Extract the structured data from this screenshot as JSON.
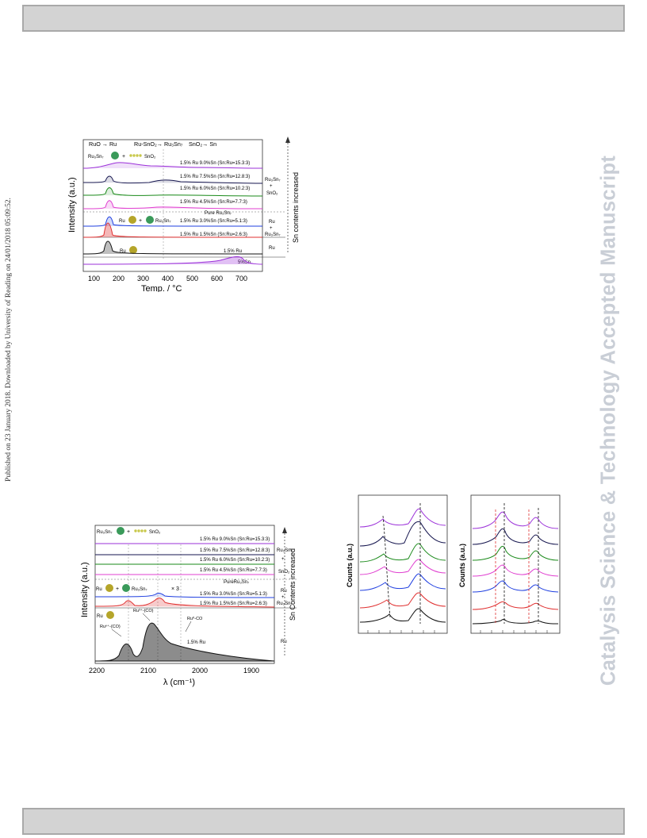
{
  "watermark": "Catalysis Science & Technology Accepted Manuscript",
  "download_stamp": "Published on 23 January 2018. Downloaded by University of Reading on 24/01/2018 05:09:52.",
  "colors": {
    "purple": "#9b30d9",
    "dark_blue": "#16164f",
    "green": "#1a8a1a",
    "magenta": "#e03fd0",
    "blue": "#1f3fe0",
    "red": "#e03030",
    "black": "#111111",
    "watermark": "#c9ced6",
    "bar_fill": "#d3d3d3"
  },
  "tpr_figure": {
    "top_labels": {
      "ru_reduction": "RuO → Ru",
      "rusn_reduction": "Ru-SnO₂→ Ru₃Sn₇",
      "sn_reduction": "SnO₂→ Sn"
    },
    "top_legend": {
      "ru3sn7": "Ru₃Sn₇",
      "plus": "+",
      "sno2": "SnO₂"
    },
    "mid_legend": {
      "ru": "Ru",
      "plus": "+",
      "ru3sn7": "Ru₃Sn₇"
    },
    "ru_legend": "Ru",
    "pure_label": "Pure Ru₃Sn₇",
    "series_labels": [
      "1.5% Ru 9.0%Sn (Sn:Ru=15.3:3)",
      "1.5% Ru 7.5%Sn (Sn:Ru=12.8:3)",
      "1.5% Ru 6.0%Sn (Sn:Ru=10.2:3)",
      "1.5% Ru 4.5%Sn (Sn:Ru=7.7:3)",
      "1.5% Ru 3.0%Sn (Sn:Ru=5.1:3)",
      "1.5% Ru 1.5%Sn (Sn:Ru=2.6:3)",
      "1.5% Ru",
      "5%Sn"
    ],
    "y_label": "Intensity (a.u.)",
    "x_label": "Temp. / °C",
    "x_ticks": [
      "100",
      "200",
      "300",
      "400",
      "500",
      "600",
      "700"
    ],
    "side_labels": {
      "ru3sn7_a": "Ru₃Sn₇",
      "plus_a": "+",
      "sno2_a": "SnO₂",
      "ru_b": "Ru",
      "plus_b": "+",
      "ru3sn7_b": "Ru₃Sn₇",
      "ru_c": "Ru"
    },
    "arrow_label": "Sn contents increased"
  },
  "drifts_figure": {
    "top_legend": {
      "ru3sn7": "Ru₃Sn₇",
      "plus": "+",
      "sno2": "SnO₂"
    },
    "mid_legend": {
      "ru": "Ru",
      "plus": "+",
      "ru3sn7": "Ru₃Sn₇"
    },
    "ru_legend": "Ru",
    "pure_label": "PureRu₃Sn₇",
    "series_labels": [
      "1.5% Ru 9.0%Sn (Sn:Ru=15.3:3)",
      "1.5% Ru 7.5%Sn (Sn:Ru=12.8:3)",
      "1.5% Ru 6.0%Sn (Sn:Ru=10.2:3)",
      "1.5% Ru 4.5%Sn (Sn:Ru=7.7:3)",
      "1.5% Ru 3.0%Sn (Sn:Ru=5.1:3)",
      "1.5% Ru 1.5%Sn (Sn:Ru=2.6:3)",
      "1.5% Ru"
    ],
    "times3": "× 3",
    "peak_labels": {
      "p1": "Ruⁿ⁺-(CO)",
      "p2": "Ru³⁺-(CO)",
      "p3": "Ru⁰-CO"
    },
    "y_label": "Intensity (a.u.)",
    "x_label": "λ (cm⁻¹)",
    "x_ticks": [
      "2200",
      "2100",
      "2000",
      "1900"
    ],
    "side_labels": {
      "ru3sn7_a": "Ru₃Sn₇",
      "plus_a": "+",
      "sno2_a": "SnO₂",
      "ru_b": "Ru",
      "plus_b": "+",
      "ru3sn7_b": "Ru₃Sn₇",
      "ru_c": "Ru"
    },
    "arrow_label": "Sn Contents increased"
  },
  "panel_c": {
    "y_label": "Counts (a.u.)"
  },
  "panel_d": {
    "y_label": "Counts (a.u.)"
  }
}
